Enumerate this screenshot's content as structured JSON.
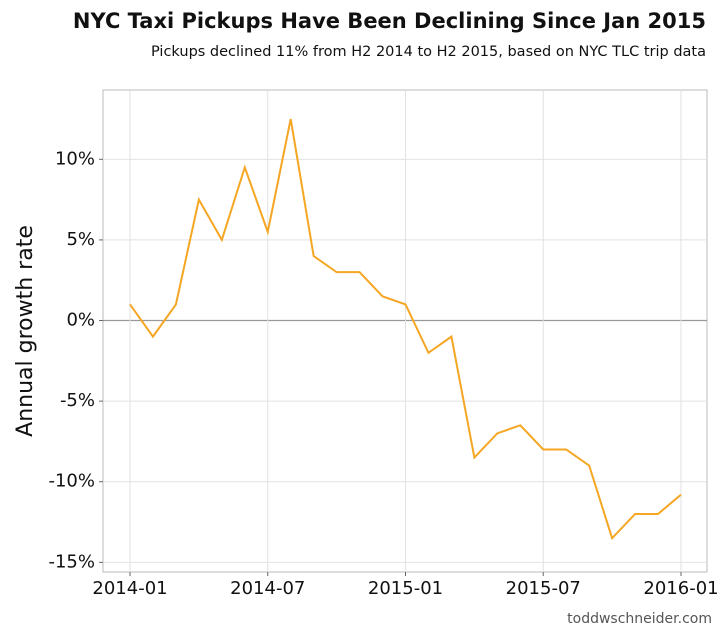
{
  "chart_data": {
    "type": "line",
    "title": "NYC Taxi Pickups Have Been Declining Since Jan 2015",
    "subtitle": "Pickups declined 11% from H2 2014 to H2 2015, based on NYC TLC trip data",
    "y_label": "Annual growth rate",
    "caption": "toddwschneider.com",
    "categories": [
      "2014-01",
      null,
      null,
      null,
      null,
      null,
      "2014-07",
      null,
      null,
      null,
      null,
      null,
      "2015-01",
      null,
      null,
      null,
      null,
      null,
      "2015-07",
      null,
      null,
      null,
      null,
      null,
      "2016-01"
    ],
    "series": [
      {
        "name": "Annual growth rate",
        "color": "#f5a623",
        "values": [
          1,
          -1,
          1,
          7.5,
          5,
          9.5,
          5.5,
          12.5,
          4,
          3,
          3,
          1.5,
          1,
          -2,
          -1,
          -8.5,
          -7,
          -6.5,
          -8,
          -8,
          -9,
          -13.5,
          -12,
          -12,
          -10.8
        ]
      }
    ],
    "ylim": [
      -15.6,
      14.3
    ],
    "yticks": [
      {
        "value": -15,
        "label": "-15%"
      },
      {
        "value": -10,
        "label": "-10%"
      },
      {
        "value": -5,
        "label": "-5%"
      },
      {
        "value": 0,
        "label": "0%"
      },
      {
        "value": 5,
        "label": "5%"
      },
      {
        "value": 10,
        "label": "10%"
      }
    ],
    "grid": true
  }
}
